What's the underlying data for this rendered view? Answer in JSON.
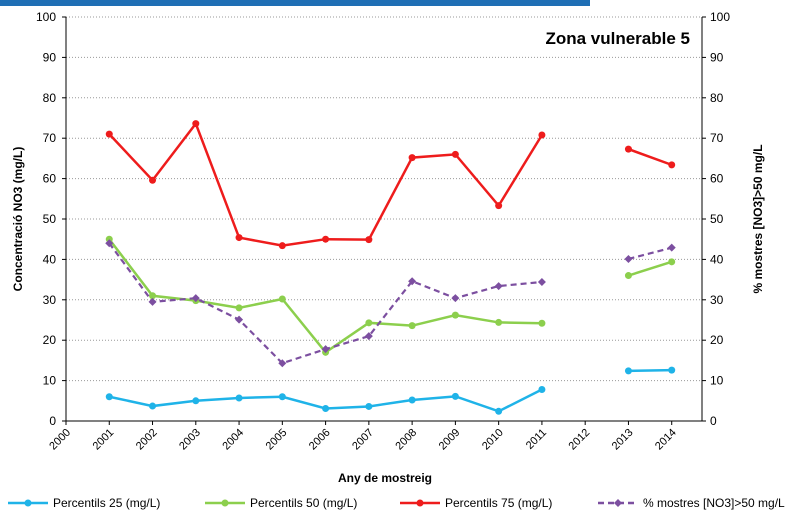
{
  "chart_data": {
    "type": "line",
    "title": "Zona vulnerable 5",
    "x_label": "Any de mostreig",
    "y_label": "Concentració NO3 (mg/L)",
    "y2_label": "% mostres [NO3]>50 mg/L",
    "categories": [
      "2000",
      "2001",
      "2002",
      "2003",
      "2004",
      "2005",
      "2006",
      "2007",
      "2008",
      "2009",
      "2010",
      "2011",
      "2012",
      "2013",
      "2014"
    ],
    "ylim": [
      0,
      100
    ],
    "yticks": [
      0,
      10,
      20,
      30,
      40,
      50,
      60,
      70,
      80,
      90,
      100
    ],
    "y2lim": [
      0,
      100
    ],
    "y2ticks": [
      0,
      10,
      20,
      30,
      40,
      50,
      60,
      70,
      80,
      90,
      100
    ],
    "grid": true,
    "legend": "bottom",
    "series": [
      {
        "name": "Percentils 25 (mg/L)",
        "color": "#1fb3e8",
        "marker": "circle",
        "dash": false,
        "values": [
          null,
          6,
          3.7,
          5,
          5.7,
          6,
          3.1,
          3.6,
          5.2,
          6.1,
          2.4,
          7.8,
          null,
          12.4,
          12.6
        ]
      },
      {
        "name": "Percentils 50 (mg/L)",
        "color": "#8ccf4d",
        "marker": "circle",
        "dash": false,
        "values": [
          null,
          45,
          31,
          29.8,
          28,
          30.2,
          17,
          24.3,
          23.6,
          26.2,
          24.4,
          24.2,
          null,
          36,
          39.4
        ]
      },
      {
        "name": "Percentils 75 (mg/L)",
        "color": "#ee1c1c",
        "marker": "circle",
        "dash": false,
        "values": [
          null,
          71,
          59.6,
          73.6,
          45.4,
          43.4,
          45,
          44.9,
          65.2,
          66,
          53.3,
          70.8,
          null,
          67.3,
          63.4
        ]
      },
      {
        "name": "% mostres [NO3]>50 mg/L",
        "color": "#7c4fa0",
        "marker": "diamond",
        "dash": true,
        "axis": "y2",
        "values": [
          null,
          44,
          29.5,
          30.4,
          25.1,
          14.3,
          17.8,
          21,
          34.6,
          30.4,
          33.4,
          34.4,
          null,
          40.1,
          42.9
        ]
      }
    ]
  }
}
